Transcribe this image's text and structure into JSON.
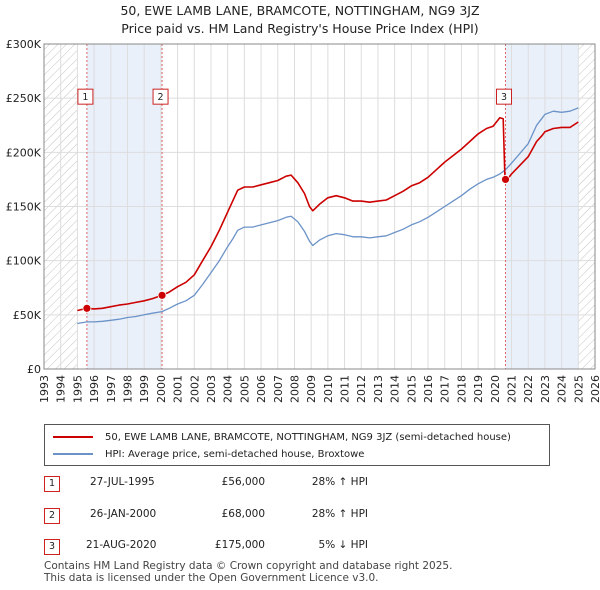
{
  "title_line1": "50, EWE LAMB LANE, BRAMCOTE, NOTTINGHAM, NG9 3JZ",
  "title_line2": "Price paid vs. HM Land Registry's House Price Index (HPI)",
  "colors": {
    "price": "#cc0000",
    "hpi": "#6b93c8",
    "sale_line": "#dd6666",
    "hatch": "#bbbbbb",
    "shade": "#eaf0fa",
    "grid": "#dddddd",
    "badge_border": "#cc2222"
  },
  "chart_data": {
    "type": "line",
    "xlim": [
      1993,
      2026
    ],
    "ylim": [
      0,
      300000
    ],
    "yticks": [
      0,
      50000,
      100000,
      150000,
      200000,
      250000,
      300000
    ],
    "ytick_labels": [
      "£0",
      "£50K",
      "£100K",
      "£150K",
      "£200K",
      "£250K",
      "£300K"
    ],
    "xticks": [
      1993,
      1994,
      1995,
      1996,
      1997,
      1998,
      1999,
      2000,
      2001,
      2002,
      2003,
      2004,
      2005,
      2006,
      2007,
      2008,
      2009,
      2010,
      2011,
      2012,
      2013,
      2014,
      2015,
      2016,
      2017,
      2018,
      2019,
      2020,
      2021,
      2022,
      2023,
      2024,
      2025,
      2026
    ],
    "hatched_ranges": [
      [
        1993,
        1995.0
      ],
      [
        2025.0,
        2026
      ]
    ],
    "shaded_ranges": [
      [
        1995.57,
        2000.07
      ],
      [
        2020.64,
        2025.0
      ]
    ],
    "series": [
      {
        "name": "50, EWE LAMB LANE, BRAMCOTE, NOTTINGHAM, NG9 3JZ (semi-detached house)",
        "key": "price",
        "points": [
          [
            1995.0,
            54000
          ],
          [
            1995.57,
            56000
          ],
          [
            1996.0,
            55500
          ],
          [
            1996.5,
            56000
          ],
          [
            1997.0,
            57500
          ],
          [
            1997.5,
            59000
          ],
          [
            1998.0,
            60000
          ],
          [
            1998.5,
            61500
          ],
          [
            1999.0,
            63000
          ],
          [
            1999.5,
            65000
          ],
          [
            2000.07,
            68000
          ],
          [
            2000.5,
            71000
          ],
          [
            2001.0,
            76000
          ],
          [
            2001.5,
            80000
          ],
          [
            2002.0,
            87000
          ],
          [
            2002.5,
            100000
          ],
          [
            2003.0,
            113000
          ],
          [
            2003.5,
            128000
          ],
          [
            2004.0,
            145000
          ],
          [
            2004.3,
            155000
          ],
          [
            2004.6,
            165000
          ],
          [
            2005.0,
            168000
          ],
          [
            2005.5,
            168000
          ],
          [
            2006.0,
            170000
          ],
          [
            2006.5,
            172000
          ],
          [
            2007.0,
            174000
          ],
          [
            2007.5,
            178000
          ],
          [
            2007.8,
            179000
          ],
          [
            2008.2,
            172000
          ],
          [
            2008.6,
            162000
          ],
          [
            2008.9,
            150000
          ],
          [
            2009.1,
            146000
          ],
          [
            2009.5,
            152000
          ],
          [
            2010.0,
            158000
          ],
          [
            2010.5,
            160000
          ],
          [
            2011.0,
            158000
          ],
          [
            2011.5,
            155000
          ],
          [
            2012.0,
            155000
          ],
          [
            2012.5,
            154000
          ],
          [
            2013.0,
            155000
          ],
          [
            2013.5,
            156000
          ],
          [
            2014.0,
            160000
          ],
          [
            2014.5,
            164000
          ],
          [
            2015.0,
            169000
          ],
          [
            2015.5,
            172000
          ],
          [
            2016.0,
            177000
          ],
          [
            2016.5,
            184000
          ],
          [
            2017.0,
            191000
          ],
          [
            2017.5,
            197000
          ],
          [
            2018.0,
            203000
          ],
          [
            2018.5,
            210000
          ],
          [
            2019.0,
            217000
          ],
          [
            2019.5,
            222000
          ],
          [
            2019.9,
            224000
          ],
          [
            2020.3,
            232000
          ],
          [
            2020.5,
            231000
          ],
          [
            2020.6,
            180000
          ],
          [
            2020.64,
            175000
          ],
          [
            2020.8,
            176000
          ],
          [
            2021.0,
            180000
          ],
          [
            2021.5,
            188000
          ],
          [
            2022.0,
            196000
          ],
          [
            2022.5,
            210000
          ],
          [
            2022.8,
            215000
          ],
          [
            2023.0,
            219000
          ],
          [
            2023.5,
            222000
          ],
          [
            2024.0,
            223000
          ],
          [
            2024.5,
            223000
          ],
          [
            2025.0,
            228000
          ]
        ]
      },
      {
        "name": "HPI: Average price, semi-detached house, Broxtowe",
        "key": "hpi",
        "points": [
          [
            1995.0,
            42000
          ],
          [
            1995.57,
            43500
          ],
          [
            1996.0,
            43500
          ],
          [
            1996.5,
            44000
          ],
          [
            1997.0,
            45000
          ],
          [
            1997.5,
            46000
          ],
          [
            1998.0,
            47500
          ],
          [
            1998.5,
            48500
          ],
          [
            1999.0,
            50000
          ],
          [
            1999.5,
            51500
          ],
          [
            2000.07,
            53000
          ],
          [
            2000.5,
            56000
          ],
          [
            2001.0,
            60000
          ],
          [
            2001.5,
            63000
          ],
          [
            2002.0,
            68000
          ],
          [
            2002.5,
            78000
          ],
          [
            2003.0,
            89000
          ],
          [
            2003.5,
            100000
          ],
          [
            2004.0,
            113000
          ],
          [
            2004.3,
            120000
          ],
          [
            2004.6,
            128000
          ],
          [
            2005.0,
            131000
          ],
          [
            2005.5,
            131000
          ],
          [
            2006.0,
            133000
          ],
          [
            2006.5,
            135000
          ],
          [
            2007.0,
            137000
          ],
          [
            2007.5,
            140000
          ],
          [
            2007.8,
            141000
          ],
          [
            2008.2,
            136000
          ],
          [
            2008.6,
            127000
          ],
          [
            2008.9,
            118000
          ],
          [
            2009.1,
            114000
          ],
          [
            2009.5,
            119000
          ],
          [
            2010.0,
            123000
          ],
          [
            2010.5,
            125000
          ],
          [
            2011.0,
            124000
          ],
          [
            2011.5,
            122000
          ],
          [
            2012.0,
            122000
          ],
          [
            2012.5,
            121000
          ],
          [
            2013.0,
            122000
          ],
          [
            2013.5,
            123000
          ],
          [
            2014.0,
            126000
          ],
          [
            2014.5,
            129000
          ],
          [
            2015.0,
            133000
          ],
          [
            2015.5,
            136000
          ],
          [
            2016.0,
            140000
          ],
          [
            2016.5,
            145000
          ],
          [
            2017.0,
            150000
          ],
          [
            2017.5,
            155000
          ],
          [
            2018.0,
            160000
          ],
          [
            2018.5,
            166000
          ],
          [
            2019.0,
            171000
          ],
          [
            2019.5,
            175000
          ],
          [
            2019.9,
            177000
          ],
          [
            2020.3,
            180000
          ],
          [
            2020.64,
            184000
          ],
          [
            2021.0,
            190000
          ],
          [
            2021.5,
            199000
          ],
          [
            2022.0,
            208000
          ],
          [
            2022.5,
            225000
          ],
          [
            2022.8,
            231000
          ],
          [
            2023.0,
            235000
          ],
          [
            2023.5,
            238000
          ],
          [
            2024.0,
            237000
          ],
          [
            2024.5,
            238000
          ],
          [
            2025.0,
            241000
          ]
        ]
      }
    ],
    "sales": [
      {
        "label": "1",
        "year": 1995.57,
        "price": 56000,
        "date": "27-JUL-1995",
        "price_text": "£56,000",
        "hpi_text": "28% ↑ HPI"
      },
      {
        "label": "2",
        "year": 2000.07,
        "price": 68000,
        "date": "26-JAN-2000",
        "price_text": "£68,000",
        "hpi_text": "28% ↑ HPI"
      },
      {
        "label": "3",
        "year": 2020.64,
        "price": 175000,
        "date": "21-AUG-2020",
        "price_text": "£175,000",
        "hpi_text": "5% ↓ HPI"
      }
    ],
    "sale_marker_value": 250000
  },
  "legend": {
    "price_label": "50, EWE LAMB LANE, BRAMCOTE, NOTTINGHAM, NG9 3JZ (semi-detached house)",
    "hpi_label": "HPI: Average price, semi-detached house, Broxtowe"
  },
  "table": [
    {
      "label": "1",
      "date": "27-JUL-1995",
      "price": "£56,000",
      "hpi": "28% ↑ HPI"
    },
    {
      "label": "2",
      "date": "26-JAN-2000",
      "price": "£68,000",
      "hpi": "28% ↑ HPI"
    },
    {
      "label": "3",
      "date": "21-AUG-2020",
      "price": "£175,000",
      "hpi": "5% ↓ HPI"
    }
  ],
  "footer_line1": "Contains HM Land Registry data © Crown copyright and database right 2025.",
  "footer_line2": "This data is licensed under the Open Government Licence v3.0."
}
